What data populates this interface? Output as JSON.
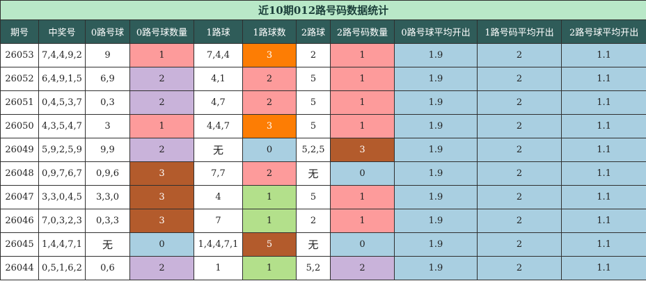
{
  "title": "近10期012路号码数据统计",
  "headers": [
    "期号",
    "中奖号",
    "0路号球",
    "0路号球数量",
    "1路球",
    "1路球数",
    "2路球",
    "2路号码数量",
    "0路号球平均开出",
    "1路号码平均开出",
    "2路号球平均开出"
  ],
  "colors": {
    "pink": "#fd9b9b",
    "purple": "#c9b3da",
    "orange": "#fd7d04",
    "brown": "#b35b2c",
    "green": "#b3e08b",
    "blue": "#a9cfe1",
    "header_bg": "#2f5c59",
    "title_bg": "#b9e8c8"
  },
  "rows": [
    [
      {
        "v": "26053",
        "c": "white"
      },
      {
        "v": "7,4,4,9,2",
        "c": "white"
      },
      {
        "v": "9",
        "c": "white"
      },
      {
        "v": "1",
        "c": "pink"
      },
      {
        "v": "7,4,4",
        "c": "white"
      },
      {
        "v": "3",
        "c": "orange"
      },
      {
        "v": "2",
        "c": "white"
      },
      {
        "v": "1",
        "c": "pink"
      },
      {
        "v": "1.9",
        "c": "blue"
      },
      {
        "v": "2",
        "c": "blue"
      },
      {
        "v": "1.1",
        "c": "blue"
      }
    ],
    [
      {
        "v": "26052",
        "c": "white"
      },
      {
        "v": "6,4,9,1,5",
        "c": "white"
      },
      {
        "v": "6,9",
        "c": "white"
      },
      {
        "v": "2",
        "c": "purple"
      },
      {
        "v": "4,1",
        "c": "white"
      },
      {
        "v": "2",
        "c": "pink"
      },
      {
        "v": "5",
        "c": "white"
      },
      {
        "v": "1",
        "c": "pink"
      },
      {
        "v": "1.9",
        "c": "blue"
      },
      {
        "v": "2",
        "c": "blue"
      },
      {
        "v": "1.1",
        "c": "blue"
      }
    ],
    [
      {
        "v": "26051",
        "c": "white"
      },
      {
        "v": "0,4,5,3,7",
        "c": "white"
      },
      {
        "v": "0,3",
        "c": "white"
      },
      {
        "v": "2",
        "c": "purple"
      },
      {
        "v": "4,7",
        "c": "white"
      },
      {
        "v": "2",
        "c": "pink"
      },
      {
        "v": "5",
        "c": "white"
      },
      {
        "v": "1",
        "c": "pink"
      },
      {
        "v": "1.9",
        "c": "blue"
      },
      {
        "v": "2",
        "c": "blue"
      },
      {
        "v": "1.1",
        "c": "blue"
      }
    ],
    [
      {
        "v": "26050",
        "c": "white"
      },
      {
        "v": "4,3,5,4,7",
        "c": "white"
      },
      {
        "v": "3",
        "c": "white"
      },
      {
        "v": "1",
        "c": "pink"
      },
      {
        "v": "4,4,7",
        "c": "white"
      },
      {
        "v": "3",
        "c": "orange"
      },
      {
        "v": "5",
        "c": "white"
      },
      {
        "v": "1",
        "c": "pink"
      },
      {
        "v": "1.9",
        "c": "blue"
      },
      {
        "v": "2",
        "c": "blue"
      },
      {
        "v": "1.1",
        "c": "blue"
      }
    ],
    [
      {
        "v": "26049",
        "c": "white"
      },
      {
        "v": "5,9,2,5,9",
        "c": "white"
      },
      {
        "v": "9,9",
        "c": "white"
      },
      {
        "v": "2",
        "c": "purple"
      },
      {
        "v": "无",
        "c": "white"
      },
      {
        "v": "0",
        "c": "blue"
      },
      {
        "v": "5,2,5",
        "c": "white"
      },
      {
        "v": "3",
        "c": "brown"
      },
      {
        "v": "1.9",
        "c": "blue"
      },
      {
        "v": "2",
        "c": "blue"
      },
      {
        "v": "1.1",
        "c": "blue"
      }
    ],
    [
      {
        "v": "26048",
        "c": "white"
      },
      {
        "v": "0,9,7,6,7",
        "c": "white"
      },
      {
        "v": "0,9,6",
        "c": "white"
      },
      {
        "v": "3",
        "c": "brown"
      },
      {
        "v": "7,7",
        "c": "white"
      },
      {
        "v": "2",
        "c": "pink"
      },
      {
        "v": "无",
        "c": "white"
      },
      {
        "v": "0",
        "c": "blue"
      },
      {
        "v": "1.9",
        "c": "blue"
      },
      {
        "v": "2",
        "c": "blue"
      },
      {
        "v": "1.1",
        "c": "blue"
      }
    ],
    [
      {
        "v": "26047",
        "c": "white"
      },
      {
        "v": "3,3,0,4,5",
        "c": "white"
      },
      {
        "v": "3,3,0",
        "c": "white"
      },
      {
        "v": "3",
        "c": "brown"
      },
      {
        "v": "4",
        "c": "white"
      },
      {
        "v": "1",
        "c": "green"
      },
      {
        "v": "5",
        "c": "white"
      },
      {
        "v": "1",
        "c": "pink"
      },
      {
        "v": "1.9",
        "c": "blue"
      },
      {
        "v": "2",
        "c": "blue"
      },
      {
        "v": "1.1",
        "c": "blue"
      }
    ],
    [
      {
        "v": "26046",
        "c": "white"
      },
      {
        "v": "7,0,3,2,3",
        "c": "white"
      },
      {
        "v": "0,3,3",
        "c": "white"
      },
      {
        "v": "3",
        "c": "brown"
      },
      {
        "v": "7",
        "c": "white"
      },
      {
        "v": "1",
        "c": "green"
      },
      {
        "v": "2",
        "c": "white"
      },
      {
        "v": "1",
        "c": "pink"
      },
      {
        "v": "1.9",
        "c": "blue"
      },
      {
        "v": "2",
        "c": "blue"
      },
      {
        "v": "1.1",
        "c": "blue"
      }
    ],
    [
      {
        "v": "26045",
        "c": "white"
      },
      {
        "v": "1,4,4,7,1",
        "c": "white"
      },
      {
        "v": "无",
        "c": "white"
      },
      {
        "v": "0",
        "c": "blue"
      },
      {
        "v": "1,4,4,7,1",
        "c": "white"
      },
      {
        "v": "5",
        "c": "brown"
      },
      {
        "v": "无",
        "c": "white"
      },
      {
        "v": "0",
        "c": "blue"
      },
      {
        "v": "1.9",
        "c": "blue"
      },
      {
        "v": "2",
        "c": "blue"
      },
      {
        "v": "1.1",
        "c": "blue"
      }
    ],
    [
      {
        "v": "26044",
        "c": "white"
      },
      {
        "v": "0,5,1,6,2",
        "c": "white"
      },
      {
        "v": "0,6",
        "c": "white"
      },
      {
        "v": "2",
        "c": "purple"
      },
      {
        "v": "1",
        "c": "white"
      },
      {
        "v": "1",
        "c": "green"
      },
      {
        "v": "5,2",
        "c": "white"
      },
      {
        "v": "2",
        "c": "purple"
      },
      {
        "v": "1.9",
        "c": "blue"
      },
      {
        "v": "2",
        "c": "blue"
      },
      {
        "v": "1.1",
        "c": "blue"
      }
    ]
  ]
}
